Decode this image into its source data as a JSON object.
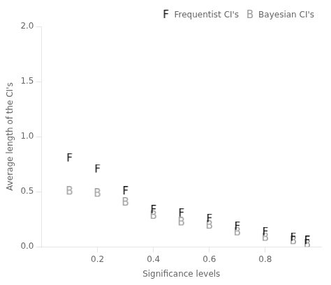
{
  "chart_data": {
    "type": "scatter",
    "x": [
      0.1,
      0.2,
      0.3,
      0.4,
      0.5,
      0.6,
      0.7,
      0.8,
      0.9,
      0.95
    ],
    "series": [
      {
        "name": "Frequentist CI's",
        "color": "#000000",
        "marker": "F",
        "values": [
          0.8,
          0.7,
          0.5,
          0.33,
          0.3,
          0.25,
          0.18,
          0.13,
          0.08,
          0.05
        ]
      },
      {
        "name": "Bayesian CI's",
        "color": "#999999",
        "marker": "B",
        "values": [
          0.5,
          0.48,
          0.4,
          0.28,
          0.22,
          0.19,
          0.13,
          0.08,
          0.05,
          0.02
        ]
      }
    ],
    "xlabel": "Significance levels",
    "ylabel": "Average length of the CI's",
    "xlim": [
      0.0,
      1.0
    ],
    "ylim": [
      0.0,
      2.0
    ],
    "xticks": [
      0.2,
      0.4,
      0.6,
      0.8
    ],
    "yticks": [
      {
        "value": 0,
        "label": "0.0"
      },
      0.5,
      {
        "value": 1,
        "label": "1.0"
      },
      1.5,
      {
        "value": 2,
        "label": "2.0"
      }
    ],
    "grid": false,
    "legend": "upper right"
  }
}
